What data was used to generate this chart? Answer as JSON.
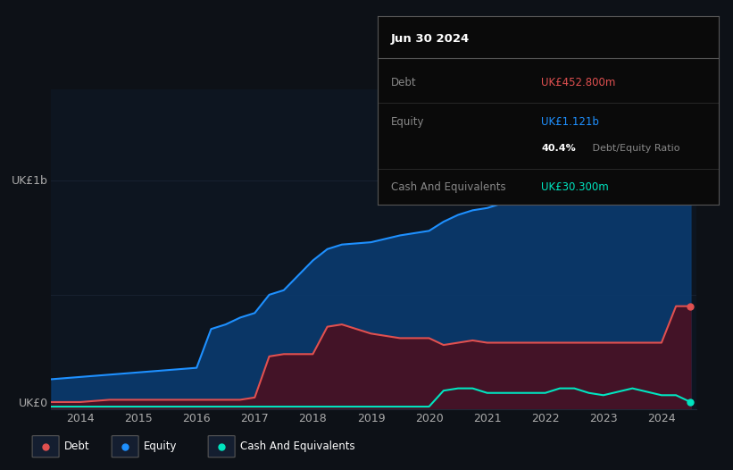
{
  "bg_color": "#0d1117",
  "plot_bg_color": "#0d1520",
  "equity_color": "#1e90ff",
  "debt_color": "#e05050",
  "cash_color": "#00e5c0",
  "equity_fill": "#0a3a6e",
  "debt_fill": "#4a1020",
  "tooltip_bg": "#0a0a0a",
  "tooltip_title": "Jun 30 2024",
  "tooltip_debt_label": "Debt",
  "tooltip_debt_value": "UK£452.800m",
  "tooltip_equity_label": "Equity",
  "tooltip_equity_value": "UK£1.121b",
  "tooltip_ratio_bold": "40.4%",
  "tooltip_ratio_rest": " Debt/Equity Ratio",
  "tooltip_cash_label": "Cash And Equivalents",
  "tooltip_cash_value": "UK£30.300m",
  "legend_debt": "Debt",
  "legend_equity": "Equity",
  "legend_cash": "Cash And Equivalents",
  "ylabel_top": "UK£1b",
  "ylabel_bottom": "UK£0",
  "years": [
    2013.5,
    2014.0,
    2014.5,
    2015.0,
    2015.5,
    2016.0,
    2016.25,
    2016.5,
    2016.75,
    2017.0,
    2017.25,
    2017.5,
    2018.0,
    2018.25,
    2018.5,
    2019.0,
    2019.5,
    2020.0,
    2020.25,
    2020.5,
    2020.75,
    2021.0,
    2021.5,
    2022.0,
    2022.25,
    2022.5,
    2022.75,
    2023.0,
    2023.5,
    2024.0,
    2024.25,
    2024.5
  ],
  "equity": [
    0.13,
    0.14,
    0.15,
    0.16,
    0.17,
    0.18,
    0.35,
    0.37,
    0.4,
    0.42,
    0.5,
    0.52,
    0.65,
    0.7,
    0.72,
    0.73,
    0.76,
    0.78,
    0.82,
    0.85,
    0.87,
    0.88,
    0.92,
    0.96,
    0.98,
    1.0,
    1.02,
    1.04,
    1.07,
    1.09,
    1.12,
    1.12
  ],
  "debt": [
    0.03,
    0.03,
    0.04,
    0.04,
    0.04,
    0.04,
    0.04,
    0.04,
    0.04,
    0.05,
    0.23,
    0.24,
    0.24,
    0.36,
    0.37,
    0.33,
    0.31,
    0.31,
    0.28,
    0.29,
    0.3,
    0.29,
    0.29,
    0.29,
    0.29,
    0.29,
    0.29,
    0.29,
    0.29,
    0.29,
    0.45,
    0.45
  ],
  "cash": [
    0.01,
    0.01,
    0.01,
    0.01,
    0.01,
    0.01,
    0.01,
    0.01,
    0.01,
    0.01,
    0.01,
    0.01,
    0.01,
    0.01,
    0.01,
    0.01,
    0.01,
    0.01,
    0.08,
    0.09,
    0.09,
    0.07,
    0.07,
    0.07,
    0.09,
    0.09,
    0.07,
    0.06,
    0.09,
    0.06,
    0.06,
    0.03
  ],
  "xlim": [
    2013.5,
    2024.6
  ],
  "ylim": [
    0,
    1.4
  ],
  "yticks": [
    0,
    0.5,
    1.0
  ],
  "xticks": [
    2014,
    2015,
    2016,
    2017,
    2018,
    2019,
    2020,
    2021,
    2022,
    2023,
    2024
  ],
  "xtick_labels": [
    "2014",
    "2015",
    "2016",
    "2017",
    "2018",
    "2019",
    "2020",
    "2021",
    "2022",
    "2023",
    "2024"
  ],
  "grid_color": "#1e2a3a",
  "grid_alpha": 0.6
}
